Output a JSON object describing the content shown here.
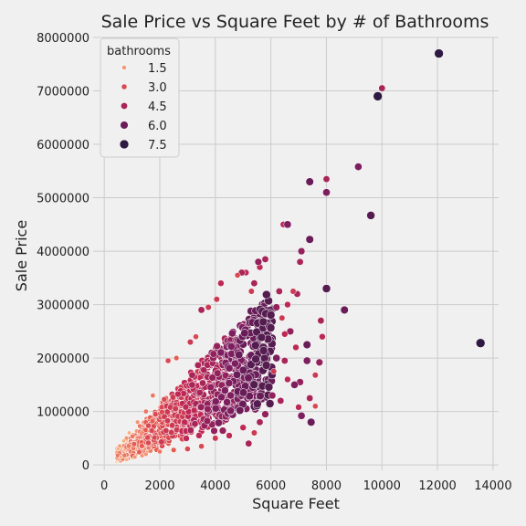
{
  "chart_data": {
    "type": "scatter",
    "title": "Sale Price vs Square Feet by # of Bathrooms",
    "xlabel": "Square Feet",
    "ylabel": "Sale Price",
    "xlim": [
      -400,
      14200
    ],
    "ylim": [
      -100000,
      8000000
    ],
    "xticks": [
      0,
      2000,
      4000,
      6000,
      8000,
      10000,
      12000,
      14000
    ],
    "yticks": [
      0,
      1000000,
      2000000,
      3000000,
      4000000,
      5000000,
      6000000,
      7000000,
      8000000
    ],
    "grid": true,
    "legend": {
      "title": "bathrooms",
      "placement": "top-left",
      "entries": [
        {
          "label": "1.5",
          "bath": 1.5
        },
        {
          "label": "3.0",
          "bath": 3.0
        },
        {
          "label": "4.5",
          "bath": 4.5
        },
        {
          "label": "6.0",
          "bath": 6.0
        },
        {
          "label": "7.5",
          "bath": 7.5
        }
      ]
    },
    "hue_colors": {
      "low": "#f5a77a",
      "mid_low": "#e4514f",
      "mid": "#b0265b",
      "mid_high": "#6e1d5b",
      "high": "#2f1a40"
    },
    "points": [
      [
        12050,
        7700000,
        7.5
      ],
      [
        10000,
        7050000,
        4.5
      ],
      [
        9850,
        6900000,
        7.5
      ],
      [
        9150,
        5580000,
        5.5
      ],
      [
        8000,
        5350000,
        4.5
      ],
      [
        8000,
        5100000,
        5.5
      ],
      [
        7400,
        5300000,
        6.0
      ],
      [
        9600,
        4670000,
        6.5
      ],
      [
        6450,
        4500000,
        4.0
      ],
      [
        6600,
        4500000,
        5.5
      ],
      [
        7400,
        4220000,
        6.0
      ],
      [
        7100,
        4000000,
        5.0
      ],
      [
        7050,
        3800000,
        4.5
      ],
      [
        8000,
        3300000,
        6.5
      ],
      [
        8650,
        2900000,
        6.0
      ],
      [
        13550,
        2280000,
        7.5
      ],
      [
        7300,
        2250000,
        6.0
      ],
      [
        7800,
        2700000,
        4.5
      ],
      [
        7850,
        2400000,
        4.0
      ],
      [
        7750,
        1920000,
        5.0
      ],
      [
        7600,
        1680000,
        3.5
      ],
      [
        7300,
        1950000,
        5.5
      ],
      [
        7400,
        1250000,
        4.5
      ],
      [
        7600,
        1100000,
        3.0
      ],
      [
        7050,
        1550000,
        5.0
      ],
      [
        7000,
        1080000,
        4.0
      ],
      [
        7450,
        800000,
        6.0
      ],
      [
        7100,
        920000,
        5.5
      ],
      [
        6850,
        1500000,
        5.5
      ],
      [
        6900,
        2200000,
        4.0
      ],
      [
        6950,
        3200000,
        4.5
      ],
      [
        6800,
        3250000,
        3.5
      ],
      [
        6600,
        3000000,
        4.0
      ],
      [
        6700,
        2500000,
        5.0
      ],
      [
        6300,
        3250000,
        4.5
      ],
      [
        6200,
        2950000,
        5.0
      ],
      [
        6400,
        2750000,
        3.5
      ],
      [
        6500,
        2450000,
        4.0
      ],
      [
        6200,
        2000000,
        5.5
      ],
      [
        6500,
        1950000,
        4.5
      ],
      [
        6100,
        1750000,
        3.5
      ],
      [
        6600,
        1600000,
        4.0
      ],
      [
        6350,
        1200000,
        4.5
      ],
      [
        6050,
        1300000,
        5.0
      ],
      [
        5800,
        3850000,
        4.5
      ],
      [
        5600,
        3700000,
        4.0
      ],
      [
        5550,
        3800000,
        5.0
      ],
      [
        5400,
        3400000,
        4.5
      ],
      [
        5300,
        3250000,
        3.5
      ],
      [
        5100,
        3600000,
        4.0
      ],
      [
        4950,
        3600000,
        4.5
      ],
      [
        4800,
        3550000,
        3.0
      ],
      [
        4200,
        3400000,
        4.0
      ],
      [
        4050,
        3100000,
        3.5
      ],
      [
        3750,
        2950000,
        3.5
      ],
      [
        3500,
        2900000,
        4.5
      ],
      [
        3300,
        2400000,
        3.0
      ],
      [
        3100,
        2300000,
        3.5
      ],
      [
        2600,
        2000000,
        2.5
      ],
      [
        2300,
        1950000,
        3.0
      ],
      [
        1750,
        1300000,
        2.0
      ],
      [
        1500,
        1000000,
        2.0
      ],
      [
        1200,
        800000,
        1.5
      ],
      [
        900,
        600000,
        1.0
      ],
      [
        700,
        450000,
        1.0
      ],
      [
        500,
        300000,
        1.0
      ],
      [
        600,
        150000,
        1.0
      ],
      [
        800,
        100000,
        1.0
      ],
      [
        1100,
        150000,
        1.5
      ],
      [
        1500,
        200000,
        1.5
      ],
      [
        2000,
        250000,
        2.0
      ],
      [
        2500,
        280000,
        2.5
      ],
      [
        3000,
        300000,
        3.0
      ],
      [
        3500,
        350000,
        3.0
      ],
      [
        4000,
        500000,
        3.5
      ],
      [
        4500,
        550000,
        4.0
      ],
      [
        5000,
        700000,
        4.0
      ],
      [
        5200,
        400000,
        4.5
      ],
      [
        5400,
        600000,
        3.5
      ],
      [
        5600,
        800000,
        4.5
      ],
      [
        5800,
        950000,
        5.0
      ]
    ]
  }
}
